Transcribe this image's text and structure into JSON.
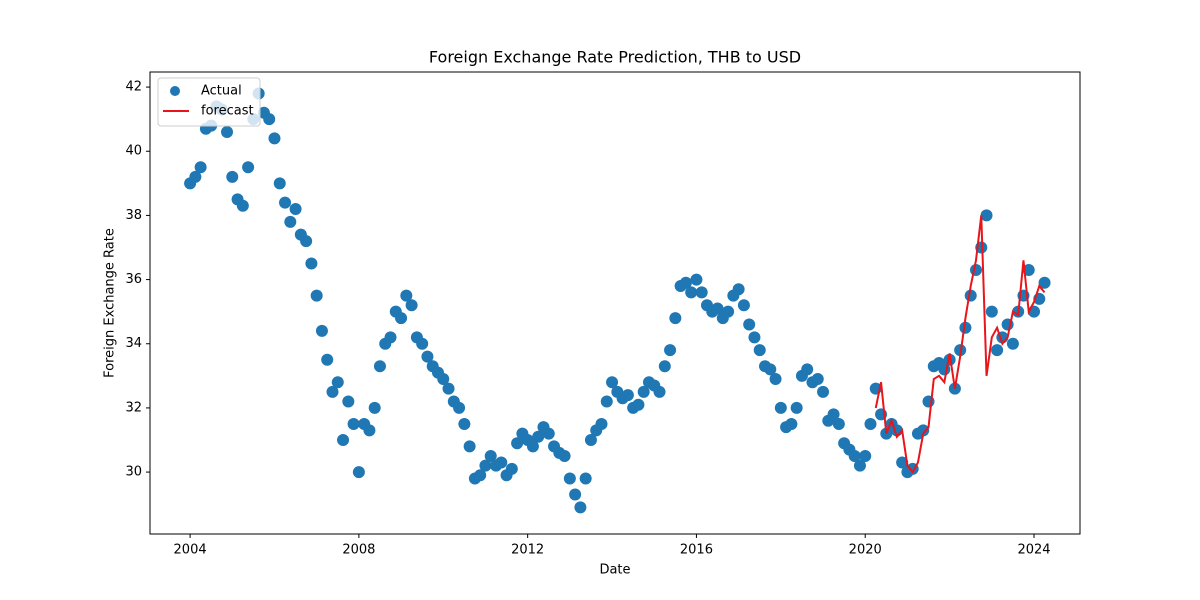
{
  "chart_data": {
    "type": "line",
    "title": "Foreign Exchange Rate Prediction, THB to USD",
    "x_label": "Date",
    "y_label": "Foreign Exchange Rate",
    "xlim": [
      2003.05,
      2025.09
    ],
    "xticks": [
      2004,
      2008,
      2012,
      2016,
      2020,
      2024
    ],
    "ylim": [
      28.07,
      42.47
    ],
    "yticks": [
      30,
      32,
      34,
      36,
      38,
      40,
      42
    ],
    "legend": "upper left",
    "series": [
      {
        "name": "Actual",
        "style": "marker",
        "color": "#1f77b4",
        "x": [
          2004,
          2004.125,
          2004.25,
          2004.375,
          2004.5,
          2004.625,
          2004.75,
          2004.875,
          2005,
          2005.125,
          2005.25,
          2005.375,
          2005.5,
          2005.625,
          2005.75,
          2005.875,
          2006,
          2006.125,
          2006.25,
          2006.375,
          2006.5,
          2006.625,
          2006.75,
          2006.875,
          2007,
          2007.125,
          2007.25,
          2007.375,
          2007.5,
          2007.625,
          2007.75,
          2007.875,
          2008,
          2008.125,
          2008.25,
          2008.375,
          2008.5,
          2008.625,
          2008.75,
          2008.875,
          2009,
          2009.125,
          2009.25,
          2009.375,
          2009.5,
          2009.625,
          2009.75,
          2009.875,
          2010,
          2010.125,
          2010.25,
          2010.375,
          2010.5,
          2010.625,
          2010.75,
          2010.875,
          2011,
          2011.125,
          2011.25,
          2011.375,
          2011.5,
          2011.625,
          2011.75,
          2011.875,
          2012,
          2012.125,
          2012.25,
          2012.375,
          2012.5,
          2012.625,
          2012.75,
          2012.875,
          2013,
          2013.125,
          2013.25,
          2013.375,
          2013.5,
          2013.625,
          2013.75,
          2013.875,
          2014,
          2014.125,
          2014.25,
          2014.375,
          2014.5,
          2014.625,
          2014.75,
          2014.875,
          2015,
          2015.125,
          2015.25,
          2015.375,
          2015.5,
          2015.625,
          2015.75,
          2015.875,
          2016,
          2016.125,
          2016.25,
          2016.375,
          2016.5,
          2016.625,
          2016.75,
          2016.875,
          2017,
          2017.125,
          2017.25,
          2017.375,
          2017.5,
          2017.625,
          2017.75,
          2017.875,
          2018,
          2018.125,
          2018.25,
          2018.375,
          2018.5,
          2018.625,
          2018.75,
          2018.875,
          2019,
          2019.125,
          2019.25,
          2019.375,
          2019.5,
          2019.625,
          2019.75,
          2019.875,
          2020,
          2020.125,
          2020.25,
          2020.375,
          2020.5,
          2020.625,
          2020.75,
          2020.875,
          2021,
          2021.125,
          2021.25,
          2021.375,
          2021.5,
          2021.625,
          2021.75,
          2021.875,
          2022,
          2022.125,
          2022.25,
          2022.375,
          2022.5,
          2022.625,
          2022.75,
          2022.875,
          2023,
          2023.125,
          2023.25,
          2023.375,
          2023.5,
          2023.625,
          2023.75,
          2023.875,
          2024,
          2024.125,
          2024.25
        ],
        "values": [
          39.0,
          39.2,
          39.5,
          40.7,
          40.8,
          41.4,
          41.3,
          40.6,
          39.2,
          38.5,
          38.3,
          39.5,
          41.0,
          41.8,
          41.2,
          41.0,
          40.4,
          39.0,
          38.4,
          37.8,
          38.2,
          37.4,
          37.2,
          36.5,
          35.5,
          34.4,
          33.5,
          32.5,
          32.8,
          31.0,
          32.2,
          31.5,
          30.0,
          31.5,
          31.3,
          32.0,
          33.3,
          34.0,
          34.2,
          35.0,
          34.8,
          35.5,
          35.2,
          34.2,
          34.0,
          33.6,
          33.3,
          33.1,
          32.9,
          32.6,
          32.2,
          32.0,
          31.5,
          30.8,
          29.8,
          29.9,
          30.2,
          30.5,
          30.2,
          30.3,
          29.9,
          30.1,
          30.9,
          31.2,
          31.0,
          30.8,
          31.1,
          31.4,
          31.2,
          30.8,
          30.6,
          30.5,
          29.8,
          29.3,
          28.9,
          29.8,
          31.0,
          31.3,
          31.5,
          32.2,
          32.8,
          32.5,
          32.3,
          32.4,
          32.0,
          32.1,
          32.5,
          32.8,
          32.7,
          32.5,
          33.3,
          33.8,
          34.8,
          35.8,
          35.9,
          35.6,
          36.0,
          35.6,
          35.2,
          35.0,
          35.1,
          34.8,
          35.0,
          35.5,
          35.7,
          35.2,
          34.6,
          34.2,
          33.8,
          33.3,
          33.2,
          32.9,
          32.0,
          31.4,
          31.5,
          32.0,
          33.0,
          33.2,
          32.8,
          32.9,
          32.5,
          31.6,
          31.8,
          31.5,
          30.9,
          30.7,
          30.5,
          30.2,
          30.5,
          31.5,
          32.6,
          31.8,
          31.2,
          31.5,
          31.3,
          30.3,
          30.0,
          30.1,
          31.2,
          31.3,
          32.2,
          33.3,
          33.4,
          33.2,
          33.5,
          32.6,
          33.8,
          34.5,
          35.5,
          36.3,
          37.0,
          38.0,
          35.0,
          33.8,
          34.2,
          34.6,
          34.0,
          35.0,
          35.5,
          36.3,
          35.0,
          35.4,
          35.9
        ]
      },
      {
        "name": "forecast",
        "style": "line",
        "color": "#e8151b",
        "x": [
          2020.25,
          2020.375,
          2020.5,
          2020.625,
          2020.75,
          2020.875,
          2021,
          2021.125,
          2021.25,
          2021.375,
          2021.5,
          2021.625,
          2021.75,
          2021.875,
          2022,
          2022.125,
          2022.25,
          2022.375,
          2022.5,
          2022.625,
          2022.75,
          2022.875,
          2023,
          2023.125,
          2023.25,
          2023.375,
          2023.5,
          2023.625,
          2023.75,
          2023.875,
          2024,
          2024.125,
          2024.25
        ],
        "values": [
          32.0,
          32.8,
          31.2,
          31.6,
          31.1,
          31.3,
          30.2,
          30.0,
          30.3,
          31.2,
          31.4,
          32.9,
          33.0,
          32.8,
          33.7,
          32.6,
          33.6,
          34.8,
          35.8,
          36.6,
          38.0,
          33.0,
          34.2,
          34.5,
          34.0,
          34.2,
          35.0,
          34.9,
          36.6,
          35.0,
          35.3,
          35.8,
          35.6
        ]
      }
    ]
  }
}
